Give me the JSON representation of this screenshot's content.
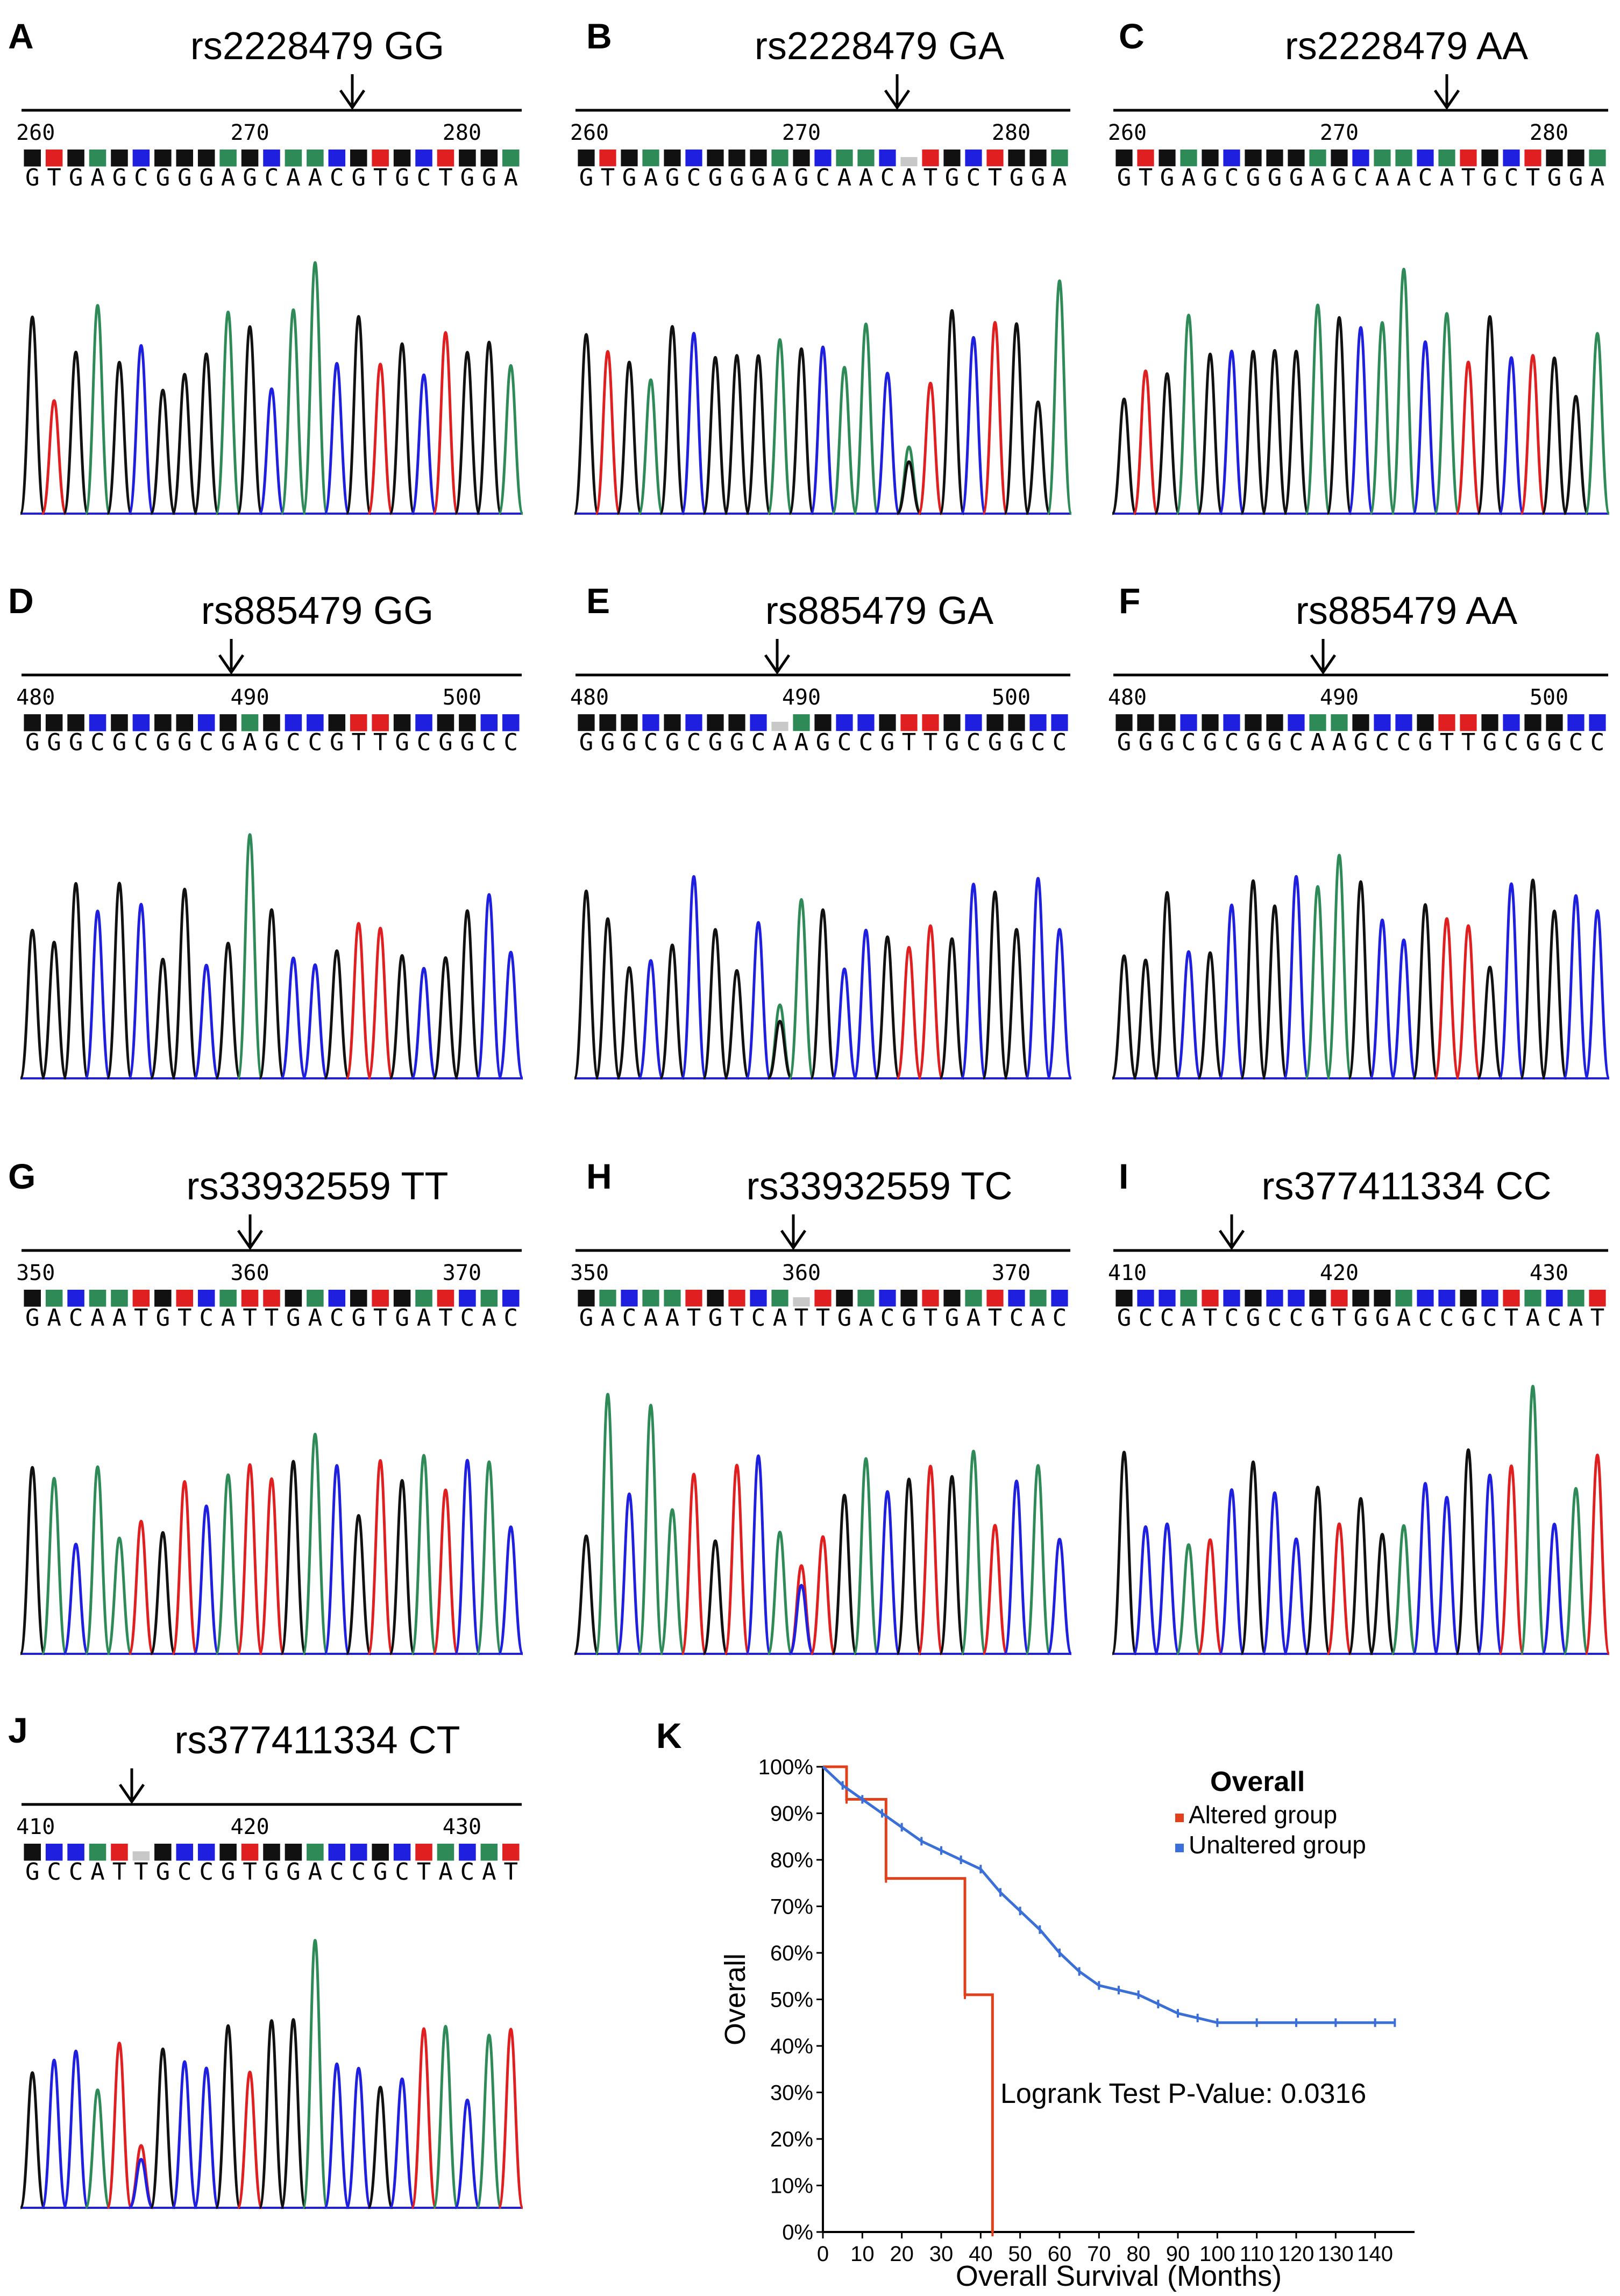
{
  "colors": {
    "A": "#2e8b57",
    "C": "#1f1fe0",
    "G": "#111111",
    "T": "#e02020",
    "N": "#c8c8c8",
    "altered": "#e0401a",
    "unaltered": "#3b6fd8"
  },
  "panels": [
    {
      "letter": "A",
      "label": "rs2228479 GG",
      "start": 260,
      "ticks": [
        "260",
        "270",
        "280"
      ],
      "seq": "GTGAGCGGGAGCAACGTGCTGGA",
      "het": []
    },
    {
      "letter": "B",
      "label": "rs2228479 GA",
      "start": 260,
      "ticks": [
        "260",
        "270",
        "280"
      ],
      "seq": "GTGAGCGGGAGCAACATGCTGGA",
      "het": [
        15
      ]
    },
    {
      "letter": "C",
      "label": "rs2228479 AA",
      "start": 260,
      "ticks": [
        "260",
        "270",
        "280"
      ],
      "seq": "GTGAGCGGGAGCAACATGCTGGA",
      "het": []
    },
    {
      "letter": "D",
      "label": "rs885479 GG",
      "start": 480,
      "ticks": [
        "480",
        "490",
        "500"
      ],
      "seq": "GGGCGCGGCGAGCCGTTGCGGCC",
      "het": []
    },
    {
      "letter": "E",
      "label": "rs885479 GA",
      "start": 480,
      "ticks": [
        "480",
        "490",
        "500"
      ],
      "seq": "GGGCGCGGCAAGCCGTTGCGGCC",
      "het": [
        9
      ]
    },
    {
      "letter": "F",
      "label": "rs885479 AA",
      "start": 480,
      "ticks": [
        "480",
        "490",
        "500"
      ],
      "seq": "GGGCGCGGCAAGCCGTTGCGGCC",
      "het": []
    },
    {
      "letter": "G",
      "label": "rs33932559 TT",
      "start": 350,
      "ticks": [
        "350",
        "360",
        "370"
      ],
      "seq": "GACAATGTCATTGACGTGATCAC",
      "het": []
    },
    {
      "letter": "H",
      "label": "rs33932559 TC",
      "start": 350,
      "ticks": [
        "350",
        "360",
        "370"
      ],
      "seq": "GACAATGTCATTGACGTGATCAC",
      "het": [
        10
      ]
    },
    {
      "letter": "I",
      "label": "rs377411334 CC",
      "start": 410,
      "ticks": [
        "410",
        "420",
        "430"
      ],
      "seq": "GCCATCGCCGTGGACCGCTACAT",
      "het": []
    },
    {
      "letter": "J",
      "label": "rs377411334 CT",
      "start": 410,
      "ticks": [
        "410",
        "420",
        "430"
      ],
      "seq": "GCCATTGCCGTGGACCGCTACAT",
      "het": [
        5
      ]
    }
  ],
  "km": {
    "letter": "K",
    "legend_title": "Overall",
    "legend_altered": "Altered group",
    "legend_unaltered": "Unaltered group",
    "ylabel": "Overall",
    "xlabel": "Overall Survival (Months)",
    "pvalue": "Logrank Test P-Value: 0.0316"
  },
  "chart_data": {
    "type": "line",
    "title": "Overall",
    "xlabel": "Overall Survival (Months)",
    "ylabel": "Overall",
    "xlim": [
      0,
      150
    ],
    "ylim": [
      0,
      100
    ],
    "x_ticks": [
      "0",
      "10",
      "20",
      "30",
      "40",
      "50",
      "60",
      "70",
      "80",
      "90",
      "100",
      "110",
      "120",
      "130",
      "140"
    ],
    "y_ticks": [
      "0%",
      "10%",
      "20%",
      "30%",
      "40%",
      "50%",
      "60%",
      "70%",
      "80%",
      "90%",
      "100%"
    ],
    "series": [
      {
        "name": "Altered group",
        "step": true,
        "x": [
          0,
          6,
          16,
          36,
          43
        ],
        "y": [
          100,
          93,
          76,
          51,
          0
        ]
      },
      {
        "name": "Unaltered group",
        "step": false,
        "x": [
          0,
          5,
          10,
          15,
          20,
          25,
          30,
          35,
          40,
          45,
          50,
          55,
          60,
          65,
          70,
          75,
          80,
          85,
          90,
          95,
          100,
          110,
          120,
          130,
          140,
          145
        ],
        "y": [
          100,
          96,
          93,
          90,
          87,
          84,
          82,
          80,
          78,
          73,
          69,
          65,
          60,
          56,
          53,
          52,
          51,
          49,
          47,
          46,
          45,
          45,
          45,
          45,
          45,
          45
        ]
      }
    ],
    "annotation": "Logrank Test P-Value: 0.0316"
  }
}
